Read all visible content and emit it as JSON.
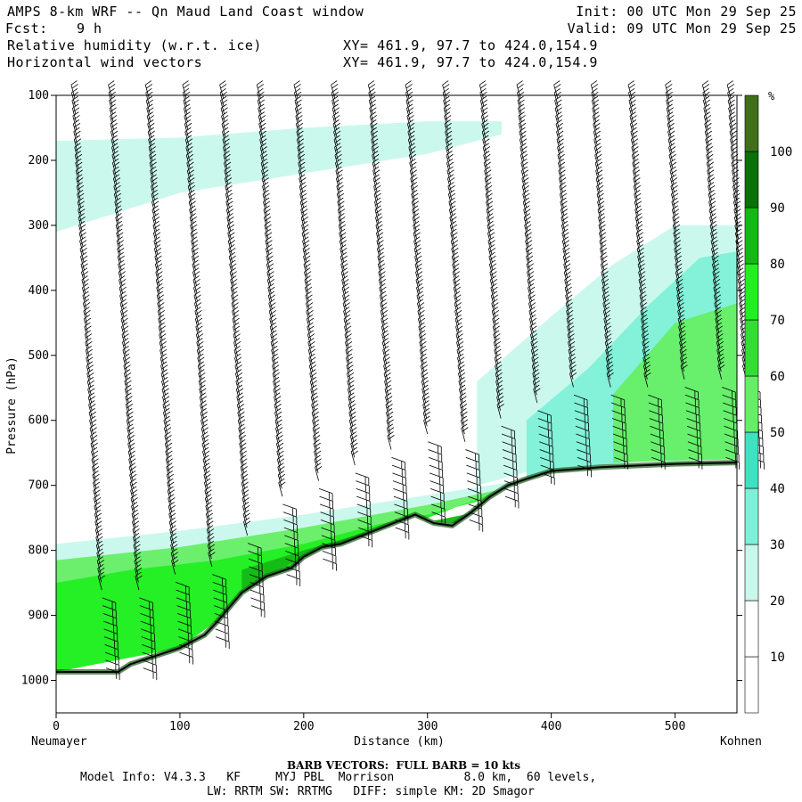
{
  "header": {
    "fcst_label": "Fcst:",
    "fcst_hours": "9 h",
    "field1": "Relative humidity (w.r.t. ice)",
    "field2": "Horizontal wind vectors",
    "xy1": "XY= 461.9, 97.7 to 424.0,154.9",
    "xy2": "XY= 461.9, 97.7 to 424.0,154.9",
    "init": "Init: 00 UTC Mon 29 Sep 25",
    "valid": "Valid: 09 UTC Mon 29 Sep 25"
  },
  "footer": {
    "barb": "BARB VECTORS:  FULL BARB = 10 kts",
    "model_info": "Model Info: V4.3.3   KF     MYJ PBL  Morrison          8.0 km,  60 levels,",
    "physics": "LW: RRTM SW: RRTMG   DIFF: simple KM: 2D Smagor"
  },
  "colors": {
    "legend_bins": [
      "#ffffff",
      "#ffffff",
      "#ffffff",
      "#c8f8ec",
      "#7ff0d8",
      "#3fe2c0",
      "#66ee66",
      "#33dd33",
      "#22ee22",
      "#14b814",
      "#0a700a",
      "#3f6f1a"
    ],
    "terrain_line": "#000000"
  },
  "chart_data": {
    "type": "cross-section",
    "title": "AMPS 8-km WRF -- Qn Maud Land Coast window",
    "xlabel": "Distance (km)",
    "ylabel": "Pressure (hPa)",
    "left_end": "Neumayer",
    "right_end": "Kohnen",
    "xlim": [
      0,
      550
    ],
    "ylim": [
      100,
      1050
    ],
    "xticks": [
      0,
      100,
      200,
      300,
      400,
      500
    ],
    "yticks": [
      100,
      200,
      300,
      400,
      500,
      600,
      700,
      800,
      900,
      1000
    ],
    "legend_unit": "%",
    "legend_levels": [
      10,
      20,
      30,
      40,
      50,
      60,
      70,
      80,
      90,
      100
    ],
    "legend_range": [
      0,
      110
    ],
    "terrain_surface": {
      "x": [
        0,
        50,
        60,
        100,
        120,
        130,
        150,
        170,
        190,
        200,
        215,
        230,
        250,
        270,
        290,
        305,
        320,
        335,
        350,
        365,
        380,
        400,
        440,
        500,
        550
      ],
      "p": [
        987,
        987,
        975,
        950,
        930,
        910,
        865,
        840,
        827,
        810,
        795,
        790,
        775,
        760,
        745,
        758,
        762,
        742,
        718,
        700,
        690,
        678,
        672,
        667,
        665
      ]
    },
    "humidity_regions": [
      {
        "level": "30-40",
        "name": "upper-moist-layer",
        "upper": [
          [
            0,
            170
          ],
          [
            100,
            165
          ],
          [
            200,
            150
          ],
          [
            300,
            140
          ],
          [
            360,
            140
          ]
        ],
        "lower": [
          [
            0,
            310
          ],
          [
            100,
            250
          ],
          [
            200,
            220
          ],
          [
            300,
            190
          ],
          [
            360,
            160
          ]
        ]
      },
      {
        "level": "30-40",
        "name": "mid-moist-layer-east",
        "upper": [
          [
            340,
            540
          ],
          [
            400,
            440
          ],
          [
            450,
            360
          ],
          [
            500,
            300
          ],
          [
            550,
            300
          ]
        ],
        "lower": [
          [
            340,
            700
          ],
          [
            400,
            670
          ],
          [
            450,
            660
          ],
          [
            500,
            655
          ],
          [
            550,
            655
          ]
        ]
      },
      {
        "level": "40-50",
        "name": "mid-moist-core-east",
        "upper": [
          [
            380,
            600
          ],
          [
            430,
            520
          ],
          [
            480,
            420
          ],
          [
            520,
            350
          ],
          [
            550,
            340
          ]
        ],
        "lower": [
          [
            380,
            690
          ],
          [
            430,
            670
          ],
          [
            480,
            662
          ],
          [
            520,
            660
          ],
          [
            550,
            658
          ]
        ]
      },
      {
        "level": "50-60",
        "name": "mid-moist-inner-east",
        "upper": [
          [
            450,
            560
          ],
          [
            500,
            450
          ],
          [
            550,
            420
          ]
        ],
        "lower": [
          [
            450,
            665
          ],
          [
            500,
            662
          ],
          [
            550,
            660
          ]
        ]
      },
      {
        "level": "30-40",
        "name": "boundary-layer-outer",
        "upper": [
          [
            0,
            790
          ],
          [
            100,
            770
          ],
          [
            200,
            745
          ],
          [
            300,
            715
          ],
          [
            400,
            685
          ],
          [
            550,
            660
          ]
        ],
        "lower": [
          [
            0,
            987
          ],
          [
            100,
            950
          ],
          [
            200,
            810
          ],
          [
            300,
            750
          ],
          [
            400,
            678
          ],
          [
            550,
            665
          ]
        ]
      },
      {
        "level": "50-60",
        "name": "boundary-layer-mid",
        "upper": [
          [
            0,
            815
          ],
          [
            100,
            795
          ],
          [
            200,
            765
          ],
          [
            300,
            730
          ],
          [
            400,
            690
          ],
          [
            550,
            663
          ]
        ],
        "lower": [
          [
            0,
            987
          ],
          [
            100,
            950
          ],
          [
            200,
            810
          ],
          [
            300,
            750
          ],
          [
            400,
            678
          ],
          [
            550,
            665
          ]
        ]
      },
      {
        "level": "70-80",
        "name": "boundary-layer-inner",
        "upper": [
          [
            0,
            850
          ],
          [
            60,
            830
          ],
          [
            130,
            815
          ],
          [
            200,
            790
          ],
          [
            260,
            760
          ],
          [
            300,
            745
          ],
          [
            360,
            715
          ],
          [
            420,
            685
          ],
          [
            550,
            664
          ]
        ],
        "lower": [
          [
            0,
            987
          ],
          [
            100,
            950
          ],
          [
            200,
            810
          ],
          [
            300,
            750
          ],
          [
            400,
            678
          ],
          [
            550,
            665
          ]
        ]
      },
      {
        "level": "80-90",
        "name": "boundary-layer-core",
        "upper": [
          [
            150,
            830
          ],
          [
            200,
            800
          ],
          [
            240,
            778
          ],
          [
            290,
            760
          ],
          [
            330,
            745
          ],
          [
            360,
            720
          ]
        ],
        "lower": [
          [
            150,
            860
          ],
          [
            200,
            810
          ],
          [
            240,
            790
          ],
          [
            290,
            752
          ],
          [
            330,
            760
          ],
          [
            360,
            725
          ]
        ]
      }
    ],
    "wind_barbs": {
      "x_columns_km": [
        15,
        45,
        75,
        105,
        135,
        165,
        195,
        225,
        255,
        285,
        315,
        345,
        375,
        405,
        435,
        465,
        495,
        525,
        545
      ],
      "p_spacing_hpa": 12,
      "typical_speed_kts": 20,
      "prevailing_direction": "north-westerly aloft, easterly near surface"
    }
  }
}
